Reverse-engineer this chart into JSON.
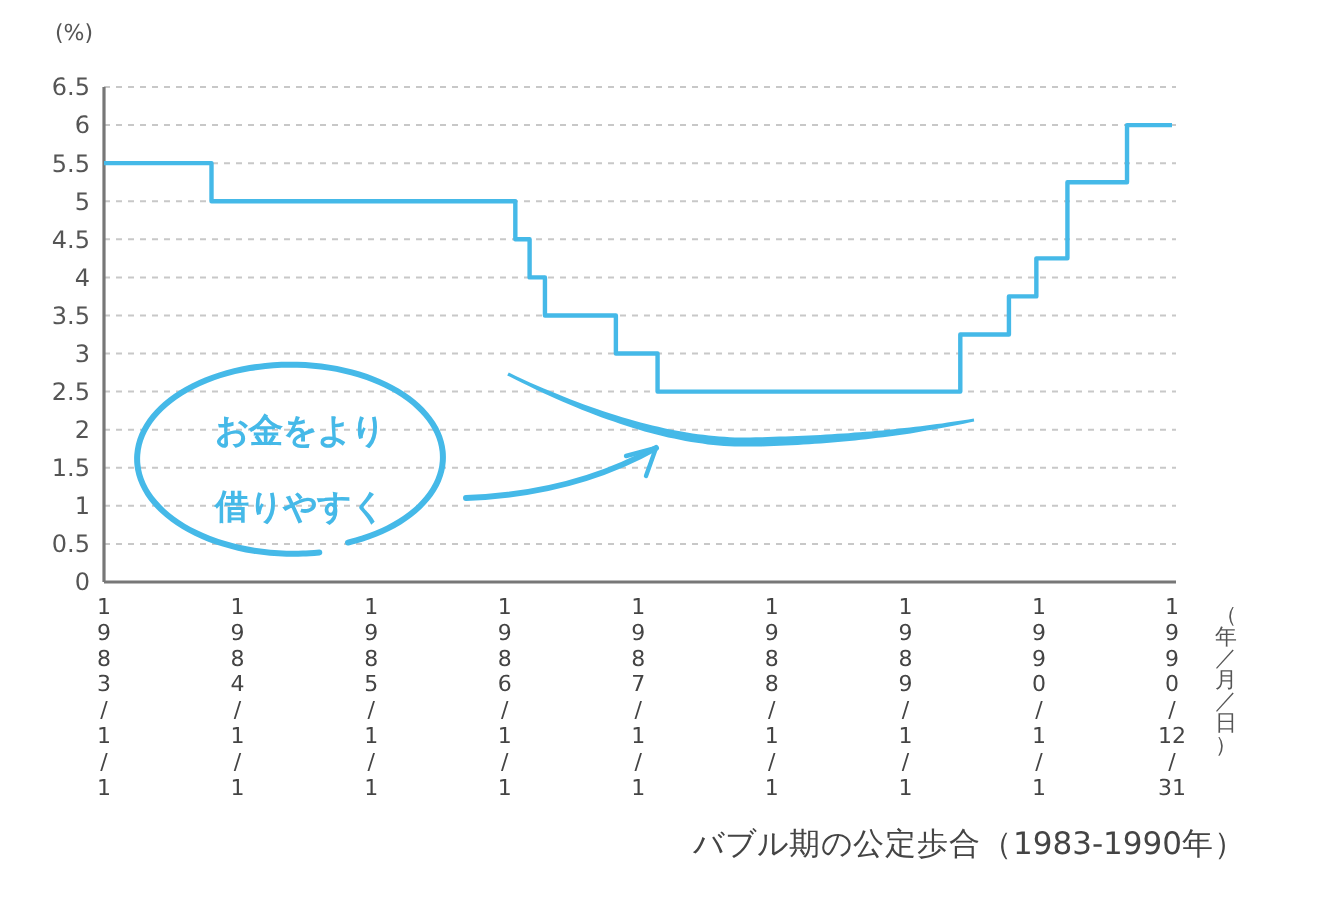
{
  "chart_data": {
    "type": "step",
    "title": "バブル期の公定歩合（1983-1990年）",
    "xlabel": "（年／月／日）",
    "ylabel": "(%)",
    "annotations": [
      "お金をより借りやすく"
    ],
    "x": [
      "1983-01-01",
      "1983-10-22",
      "1986-01-30",
      "1986-03-10",
      "1986-04-21",
      "1986-11-01",
      "1987-02-23",
      "1989-05-31",
      "1989-10-11",
      "1989-12-25",
      "1990-03-20",
      "1990-08-30",
      "1990-12-31"
    ],
    "values": [
      5.5,
      5,
      4.5,
      4,
      3.5,
      3,
      2.5,
      3.25,
      3.75,
      4.25,
      5.25,
      6,
      6
    ],
    "color": "#45b9e8",
    "line_style": "solid",
    "grid": "y",
    "xlim": [
      "1983-01-01",
      "1990-12-31"
    ],
    "xticks": [
      {
        "value": "1983-01-01",
        "label": "1983/1/1"
      },
      {
        "value": "1984-01-01",
        "label": "1984/1/1"
      },
      {
        "value": "1985-01-01",
        "label": "1985/1/1"
      },
      {
        "value": "1986-01-01",
        "label": "1986/1/1"
      },
      {
        "value": "1987-01-01",
        "label": "1987/1/1"
      },
      {
        "value": "1988-01-01",
        "label": "1988/1/1"
      },
      {
        "value": "1989-01-01",
        "label": "1989/1/1"
      },
      {
        "value": "1990-01-01",
        "label": "1990/1/1"
      },
      {
        "value": "1990-12-31",
        "label": "1990/12/31"
      }
    ],
    "ylim": [
      0,
      6.5
    ],
    "yticks": [
      0,
      0.5,
      1,
      1.5,
      2,
      2.5,
      3,
      3.5,
      4,
      4.5,
      5,
      5.5,
      6,
      6.5
    ]
  }
}
